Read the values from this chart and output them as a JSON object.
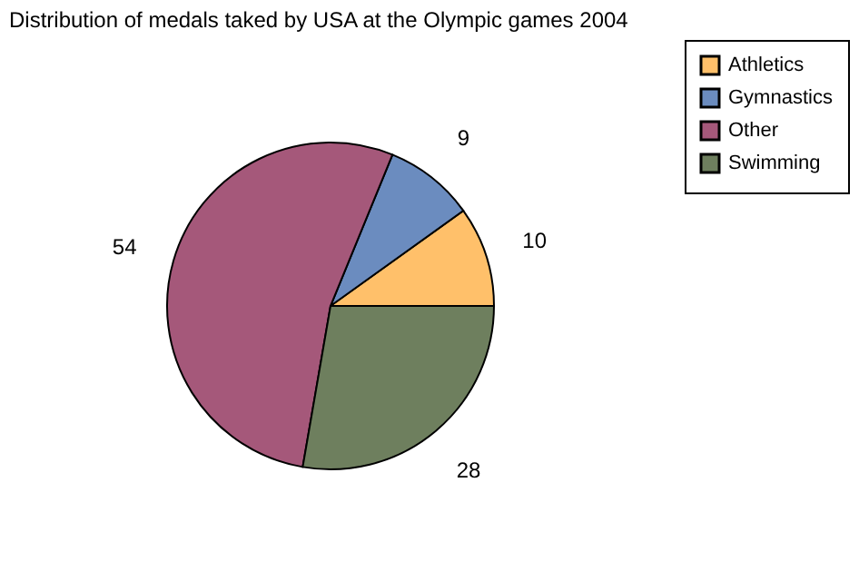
{
  "chart_data": {
    "type": "pie",
    "title": "Distribution of medals taked by USA at the Olympic games 2004",
    "categories": [
      "Athletics",
      "Gymnastics",
      "Other",
      "Swimming"
    ],
    "values": [
      10,
      9,
      54,
      28
    ],
    "colors": [
      "#ffc06a",
      "#6b8cbf",
      "#a5587a",
      "#6e7f5e"
    ],
    "data_labels": true,
    "legend": "right"
  }
}
